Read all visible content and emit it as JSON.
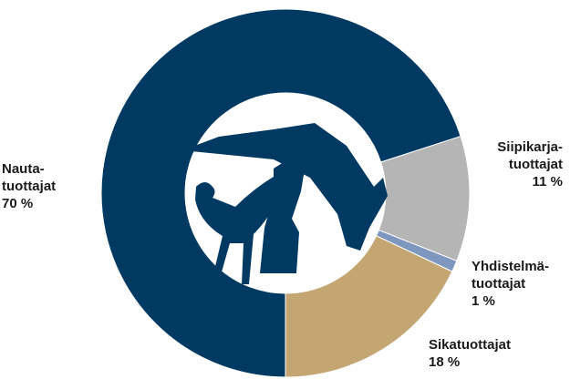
{
  "chart_data": {
    "type": "donut",
    "categories": [
      "Nauta-\ntuottajat",
      "Siipikarja-\ntuottajat",
      "Yhdistelmä-\ntuottajat",
      "Sikatuottajat"
    ],
    "values": [
      70,
      11,
      1,
      18
    ],
    "value_labels": [
      "70 %",
      "11 %",
      "1 %",
      "18 %"
    ],
    "colors": [
      "#003a63",
      "#b5b5b5",
      "#7d97be",
      "#c4a673"
    ]
  }
}
